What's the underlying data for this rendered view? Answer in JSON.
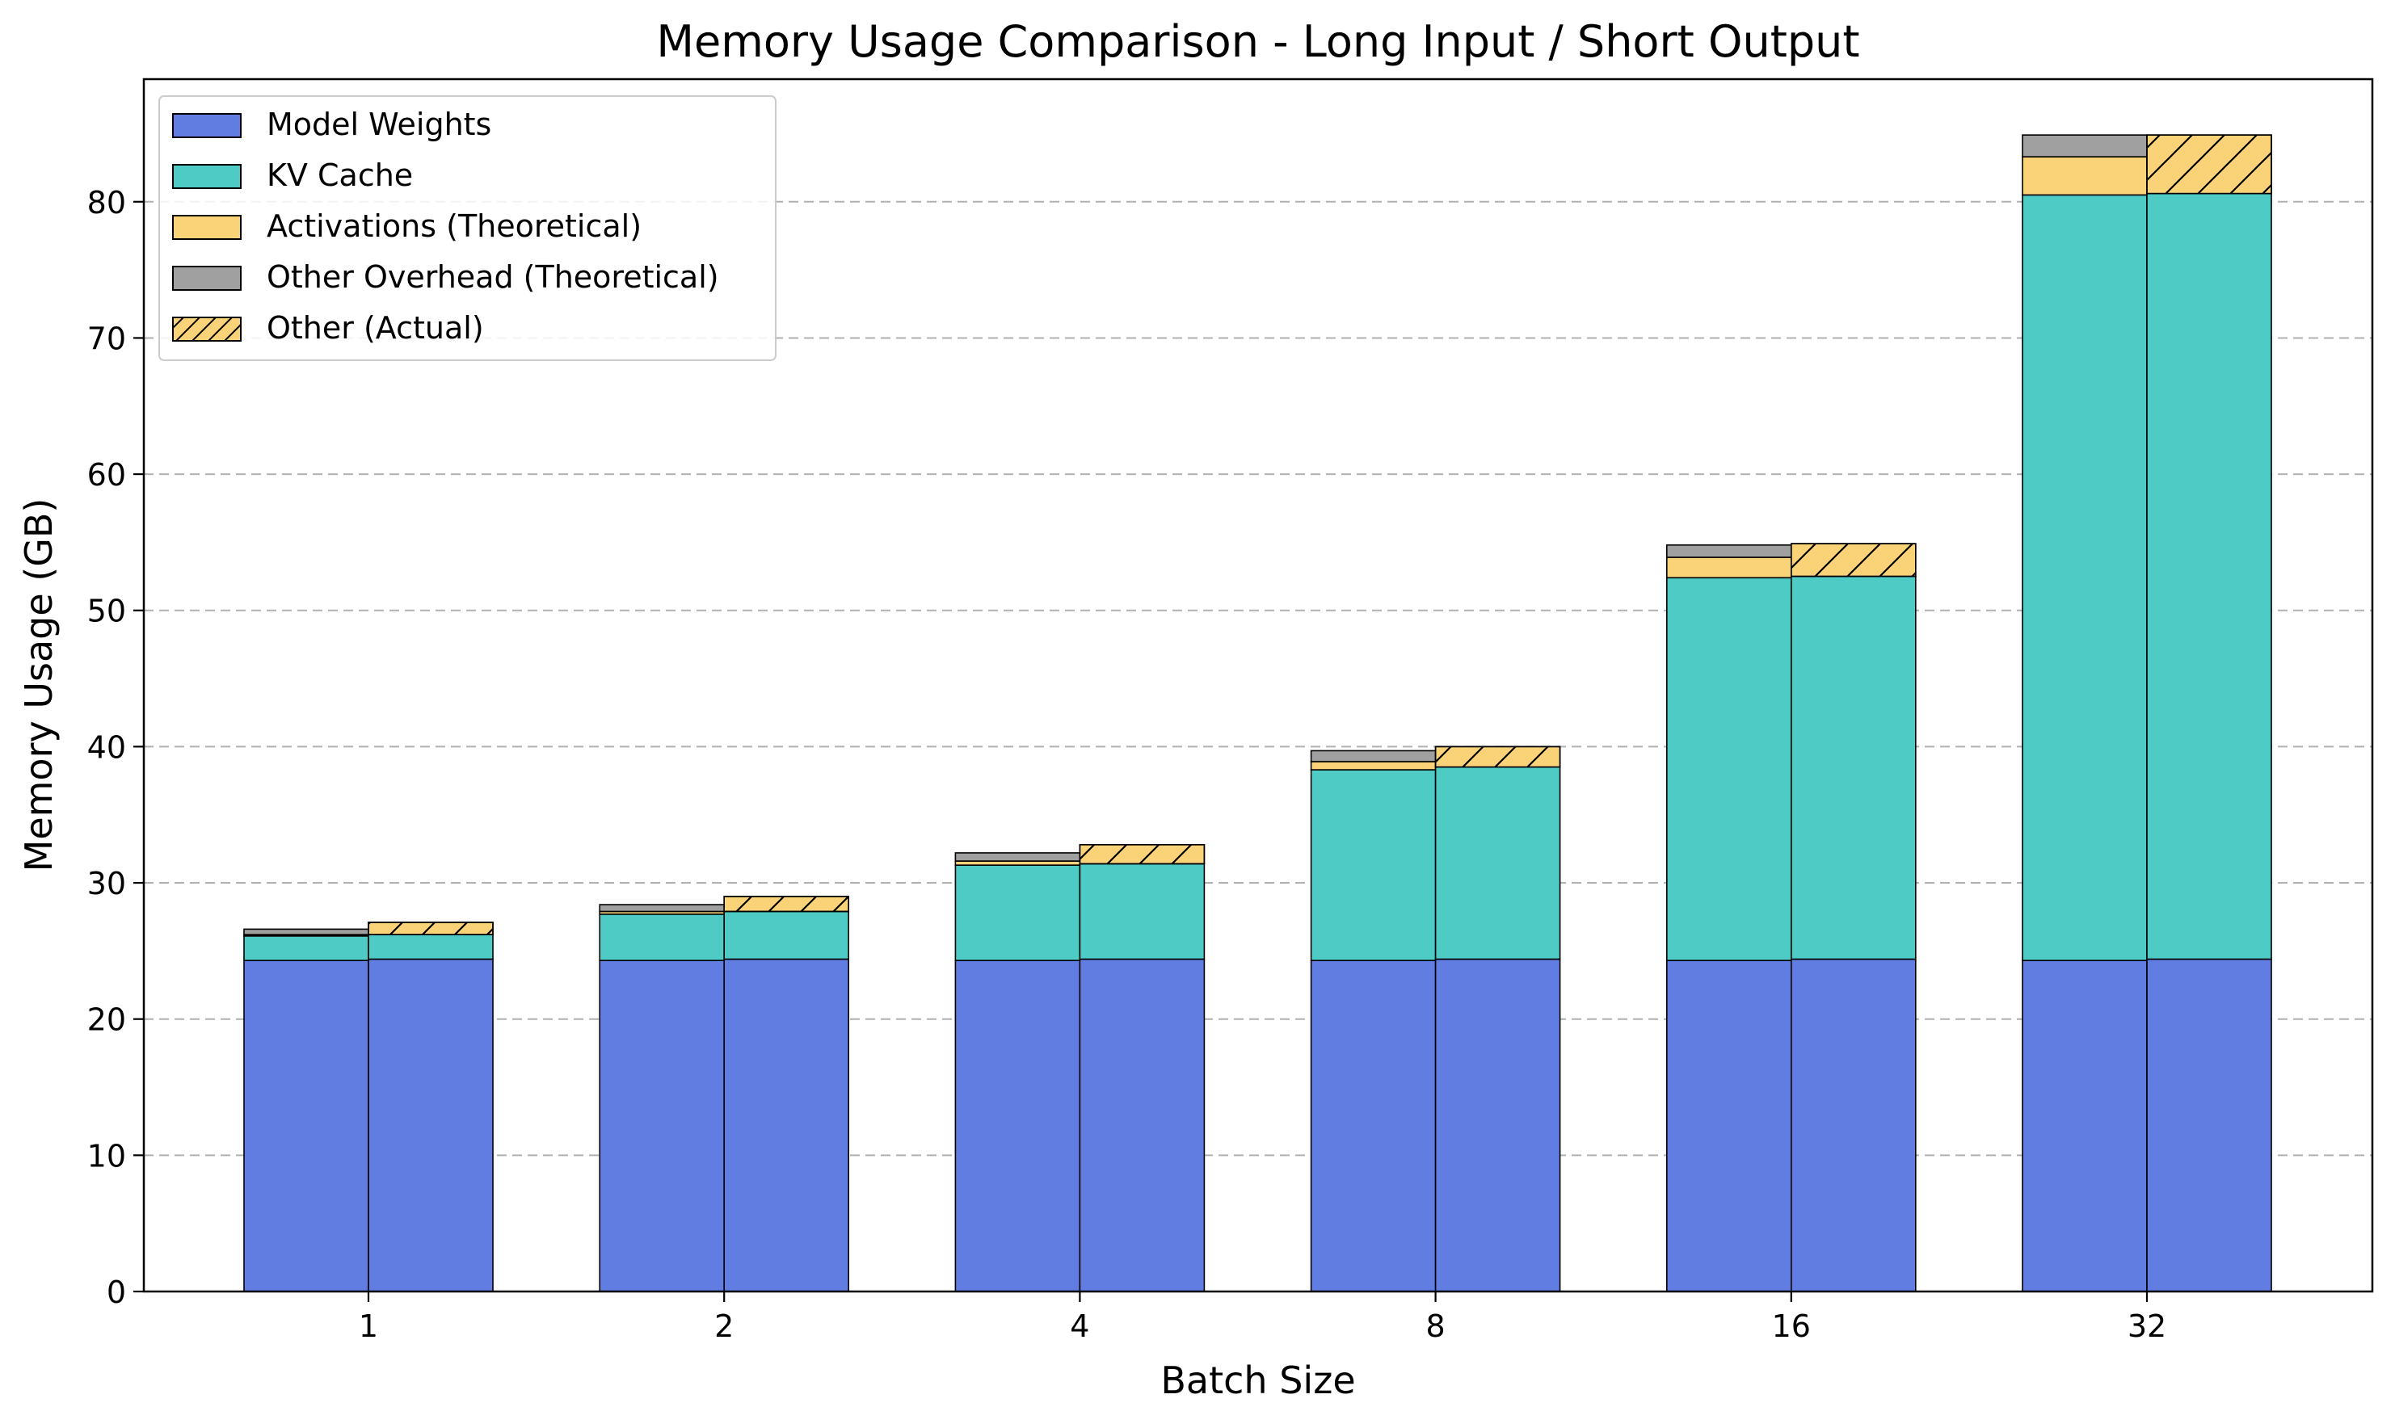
{
  "chart_data": {
    "type": "bar",
    "title": "Memory Usage Comparison - Long Input / Short Output",
    "xlabel": "Batch Size",
    "ylabel": "Memory Usage (GB)",
    "categories": [
      "1",
      "2",
      "4",
      "8",
      "16",
      "32"
    ],
    "ylim": [
      0,
      89
    ],
    "yticks": [
      0,
      10,
      20,
      30,
      40,
      50,
      60,
      70,
      80
    ],
    "grid": "y-dashed",
    "legend_position": "top-left",
    "groups": [
      {
        "name": "Theoretical",
        "stack": [
          {
            "name": "Model Weights",
            "color": "#617de2",
            "values": [
              24.3,
              24.3,
              24.3,
              24.3,
              24.3,
              24.3
            ]
          },
          {
            "name": "KV Cache",
            "color": "#4ecbc4",
            "values": [
              1.8,
              3.4,
              7.0,
              14.0,
              28.1,
              56.2
            ]
          },
          {
            "name": "Activations (Theoretical)",
            "color": "#fad378",
            "values": [
              0.1,
              0.2,
              0.3,
              0.6,
              1.5,
              2.8
            ]
          },
          {
            "name": "Other Overhead (Theoretical)",
            "color": "#a0a0a0",
            "values": [
              0.4,
              0.5,
              0.6,
              0.8,
              0.9,
              1.6
            ]
          }
        ]
      },
      {
        "name": "Actual",
        "stack": [
          {
            "name": "Model Weights",
            "color": "#617de2",
            "values": [
              24.4,
              24.4,
              24.4,
              24.4,
              24.4,
              24.4
            ]
          },
          {
            "name": "KV Cache",
            "color": "#4ecbc4",
            "values": [
              1.8,
              3.5,
              7.0,
              14.1,
              28.1,
              56.2
            ]
          },
          {
            "name": "Other (Actual)",
            "color": "#fad378",
            "hatch": true,
            "values": [
              0.9,
              1.1,
              1.4,
              1.5,
              2.4,
              4.3
            ]
          }
        ]
      }
    ],
    "legend": [
      {
        "label": "Model Weights",
        "color": "#617de2",
        "hatch": false
      },
      {
        "label": "KV Cache",
        "color": "#4ecbc4",
        "hatch": false
      },
      {
        "label": "Activations (Theoretical)",
        "color": "#fad378",
        "hatch": false
      },
      {
        "label": "Other Overhead (Theoretical)",
        "color": "#a0a0a0",
        "hatch": false
      },
      {
        "label": "Other (Actual)",
        "color": "#fad378",
        "hatch": true
      }
    ]
  }
}
